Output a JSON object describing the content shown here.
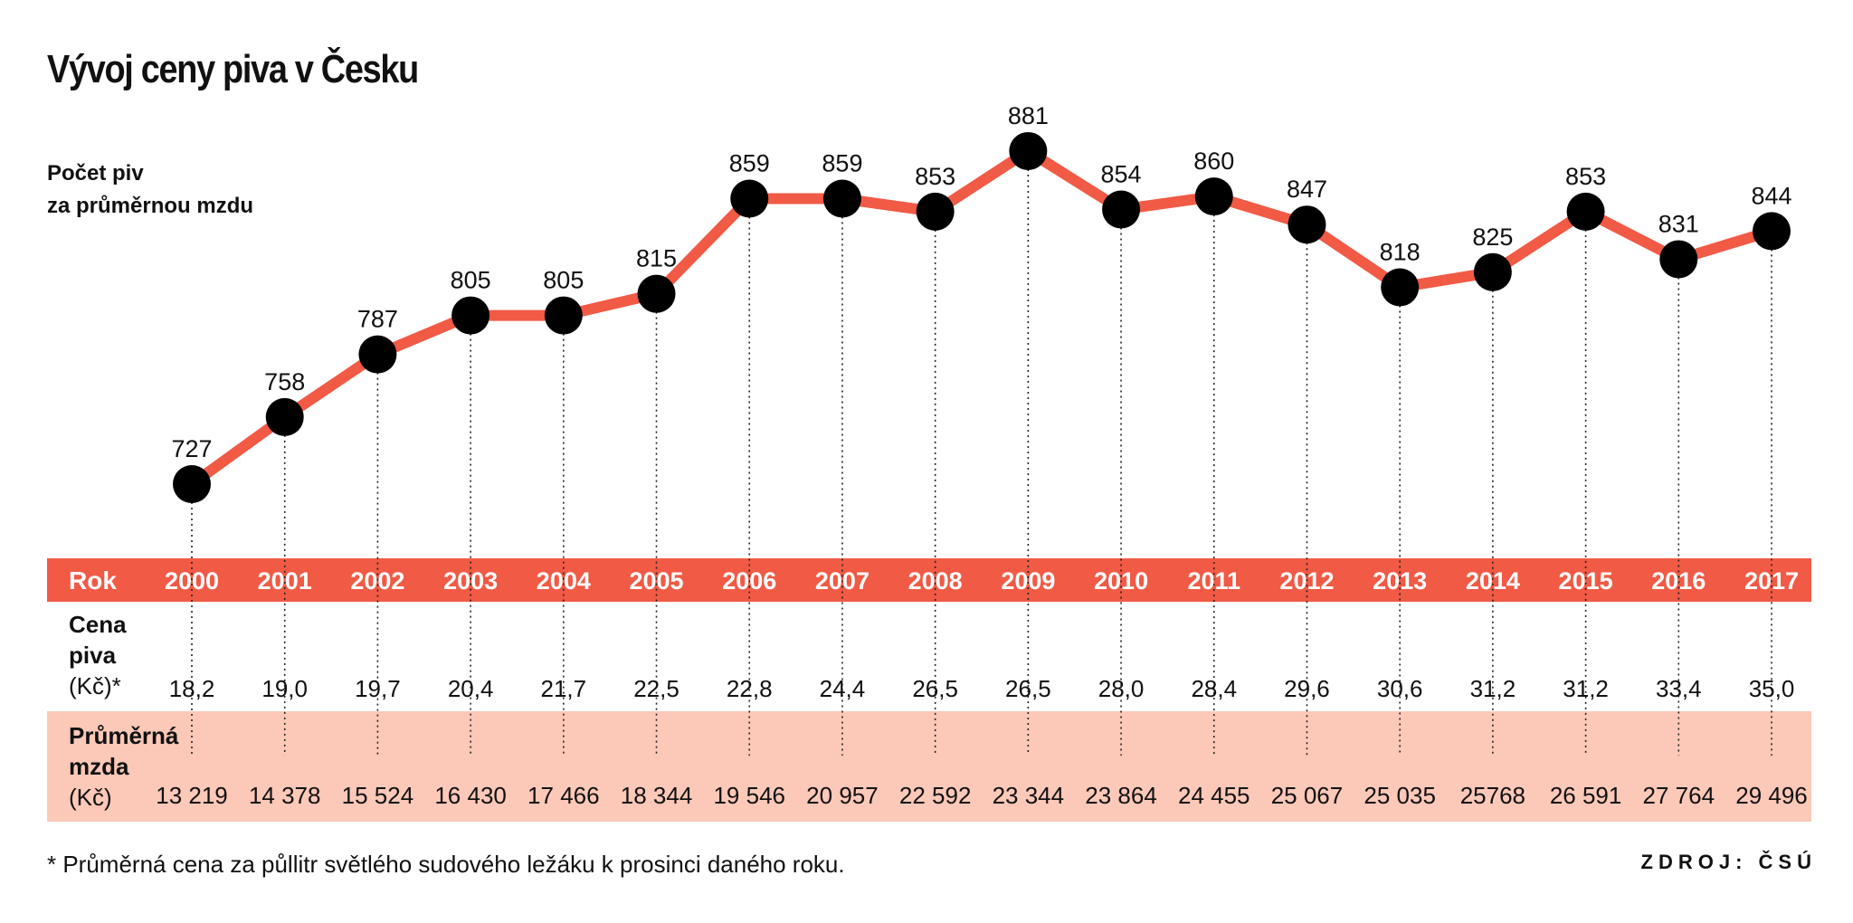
{
  "title": "Vývoj ceny piva v Česku",
  "y_label_lines": [
    "Počet piv",
    "za průměrnou mzdu"
  ],
  "rows": {
    "year_label": "Rok",
    "price_label_lines": [
      "Cena",
      "piva",
      "(Kč)*"
    ],
    "wage_label_lines": [
      "Průměrná",
      "mzda",
      "(Kč)"
    ]
  },
  "footnote": "* Průměrná cena za půllitr světlého sudového ležáku k prosinci daného roku.",
  "source": "ZDROJ: ČSÚ",
  "colors": {
    "line": "#f15a45",
    "marker": "#000000",
    "band_orange": "#f15a45",
    "band_pink": "#fcc8b8"
  },
  "chart_data": {
    "type": "line",
    "title": "Vývoj ceny piva v Česku",
    "ylabel": "Počet piv za průměrnou mzdu",
    "xlabel": "Rok",
    "ylim": [
      700,
      900
    ],
    "categories": [
      "2000",
      "2001",
      "2002",
      "2003",
      "2004",
      "2005",
      "2006",
      "2007",
      "2008",
      "2009",
      "2010",
      "2011",
      "2012",
      "2013",
      "2014",
      "2015",
      "2016",
      "2017"
    ],
    "series": [
      {
        "name": "Počet piv za průměrnou mzdu",
        "values": [
          727,
          758,
          787,
          805,
          805,
          815,
          859,
          859,
          853,
          881,
          854,
          860,
          847,
          818,
          825,
          853,
          831,
          844
        ]
      }
    ],
    "beer_price_labels": [
      "18,2",
      "19,0",
      "19,7",
      "20,4",
      "21,7",
      "22,5",
      "22,8",
      "24,4",
      "26,5",
      "26,5",
      "28,0",
      "28,4",
      "29,6",
      "30,6",
      "31,2",
      "31,2",
      "33,4",
      "35,0"
    ],
    "average_wage_labels": [
      "13 219",
      "14 378",
      "15 524",
      "16 430",
      "17 466",
      "18 344",
      "19 546",
      "20 957",
      "22 592",
      "23 344",
      "23 864",
      "24 455",
      "25 067",
      "25 035",
      "25768",
      "26 591",
      "27 764",
      "29 496"
    ]
  }
}
